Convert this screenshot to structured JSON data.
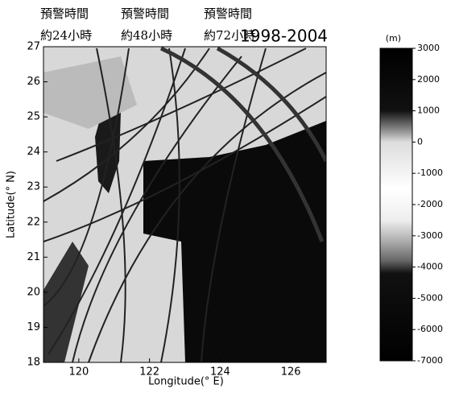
{
  "header": {
    "warnings": [
      {
        "line1": "預警時間",
        "line2": "約24小時"
      },
      {
        "line1": "預警時間",
        "line2": "約48小時"
      },
      {
        "line1": "預警時間",
        "line2": "約72小時"
      }
    ],
    "period": "1998-2004"
  },
  "map": {
    "xlabel": "Longitude(° E)",
    "ylabel": "Latitude(° N)",
    "xlim": [
      119,
      127
    ],
    "ylim": [
      18,
      27
    ],
    "xticks": [
      120,
      122,
      124,
      126
    ],
    "yticks": [
      18,
      19,
      20,
      21,
      22,
      23,
      24,
      25,
      26,
      27
    ]
  },
  "colorbar": {
    "unit": "(m)",
    "lim": [
      -7000,
      3000
    ],
    "ticks": [
      3000,
      2000,
      1000,
      0,
      -1000,
      -2000,
      -3000,
      -4000,
      -5000,
      -6000,
      -7000
    ]
  }
}
